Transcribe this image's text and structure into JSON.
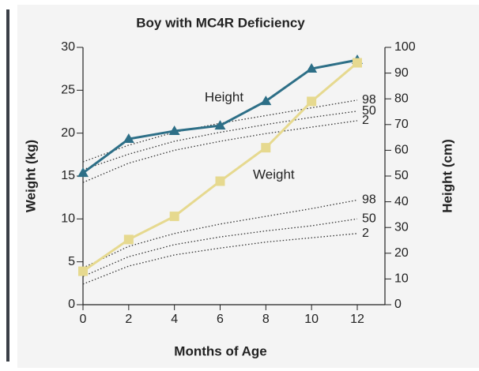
{
  "chart_data": {
    "type": "line",
    "title": "Boy with MC4R Deficiency",
    "x_label": "Months of Age",
    "y_label": "Weight (kg)",
    "y2_label": "Height (cm)",
    "x": [
      0,
      2,
      4,
      6,
      8,
      10,
      12
    ],
    "xlim": [
      0,
      12
    ],
    "xticks": [
      0,
      2,
      4,
      6,
      8,
      10,
      12
    ],
    "ylim": [
      0,
      30
    ],
    "yticks": [
      0,
      5,
      10,
      15,
      20,
      25,
      30
    ],
    "y2lim": [
      0,
      100
    ],
    "y2ticks": [
      0,
      10,
      20,
      30,
      40,
      50,
      60,
      70,
      80,
      90,
      100
    ],
    "series": [
      {
        "name": "Height",
        "axis": "y2",
        "color": "#2d6f87",
        "marker": "triangle",
        "values": [
          51.2,
          64.4,
          67.5,
          69.6,
          79.1,
          91.7,
          95.1
        ]
      },
      {
        "name": "Weight",
        "color": "#e6d98f",
        "marker": "square",
        "values": [
          3.9,
          7.6,
          10.3,
          14.4,
          18.3,
          23.7,
          28.2
        ]
      }
    ],
    "percentiles": [
      {
        "name": "98",
        "axis": "y2",
        "style": "dotted",
        "color": "#333333",
        "values": [
          55.5,
          62,
          67,
          70.5,
          73.5,
          76.5,
          79.5
        ]
      },
      {
        "name": "50",
        "axis": "y2",
        "style": "dotted",
        "color": "#333333",
        "values": [
          52.5,
          58.5,
          63.5,
          67,
          70,
          72.8,
          75.2
        ]
      },
      {
        "name": "2",
        "axis": "y2",
        "style": "dotted",
        "color": "#333333",
        "values": [
          47.5,
          55,
          60,
          63.5,
          66.5,
          69,
          71.5
        ]
      },
      {
        "name": "98",
        "style": "dotted",
        "color": "#333333",
        "values": [
          4.3,
          6.8,
          8.3,
          9.4,
          10.3,
          11.2,
          12.2
        ]
      },
      {
        "name": "50",
        "style": "dotted",
        "color": "#333333",
        "values": [
          3.3,
          5.6,
          7.0,
          7.9,
          8.6,
          9.2,
          10.0
        ]
      },
      {
        "name": "2",
        "style": "dotted",
        "color": "#333333",
        "values": [
          2.4,
          4.5,
          5.8,
          6.6,
          7.3,
          7.8,
          8.3
        ]
      }
    ]
  }
}
